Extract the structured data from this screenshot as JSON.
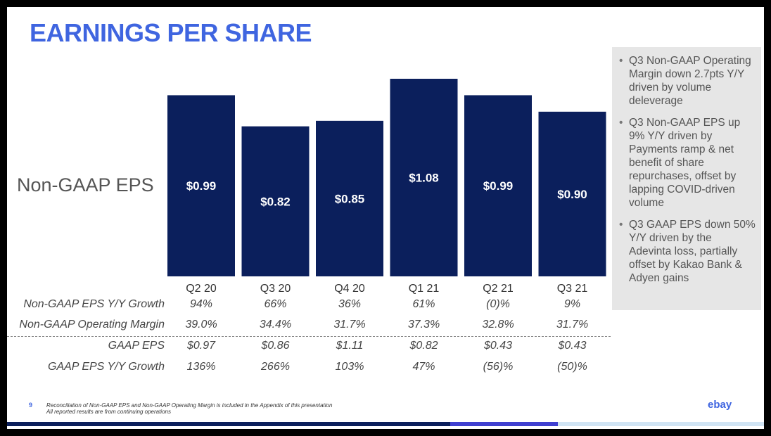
{
  "title": "EARNINGS PER SHARE",
  "side_label": "Non-GAAP EPS",
  "chart_data": {
    "type": "bar",
    "categories": [
      "Q2 20",
      "Q3 20",
      "Q4 20",
      "Q1 21",
      "Q2 21",
      "Q3 21"
    ],
    "values": [
      0.99,
      0.82,
      0.85,
      1.08,
      0.99,
      0.9
    ],
    "data_labels": [
      "$0.99",
      "$0.82",
      "$0.85",
      "$1.08",
      "$0.99",
      "$0.90"
    ],
    "ylabel": "Non-GAAP EPS",
    "ylim": [
      0,
      1.08
    ],
    "bar_color": "#0b1f5c"
  },
  "table": {
    "rows": [
      {
        "label": "Non-GAAP EPS Y/Y Growth",
        "values": [
          "94%",
          "66%",
          "36%",
          "61%",
          "(0)%",
          "9%"
        ]
      },
      {
        "label": "Non-GAAP Operating Margin",
        "values": [
          "39.0%",
          "34.4%",
          "31.7%",
          "37.3%",
          "32.8%",
          "31.7%"
        ]
      },
      {
        "label": "GAAP EPS",
        "values": [
          "$0.97",
          "$0.86",
          "$1.11",
          "$0.82",
          "$0.43",
          "$0.43"
        ]
      },
      {
        "label": "GAAP EPS Y/Y Growth",
        "values": [
          "136%",
          "266%",
          "103%",
          "47%",
          "(56)%",
          "(50)%"
        ]
      }
    ]
  },
  "notes": [
    "Q3 Non-GAAP Operating Margin down 2.7pts Y/Y driven by volume deleverage",
    "Q3 Non-GAAP EPS up 9% Y/Y driven by Payments ramp & net benefit of share repurchases, offset by lapping COVID-driven volume",
    "Q3 GAAP EPS down 50% Y/Y driven by the Adevinta loss, partially offset by Kakao Bank & Adyen gains"
  ],
  "footer": {
    "page_number": "9",
    "line1": "Reconciliation of Non-GAAP EPS and Non-GAAP Operating Margin is included in the Appendix of this presentation",
    "line2": "All reported results are from continuing operations",
    "logo": "ebay"
  },
  "colors": {
    "title": "#3f65e0",
    "bar": "#0b1f5c",
    "notes_bg": "#e6e6e6",
    "footer_bar_dark": "#0b1f5c",
    "footer_bar_accent": "#3f3fd0",
    "footer_bar_light": "#d0e4f4"
  }
}
